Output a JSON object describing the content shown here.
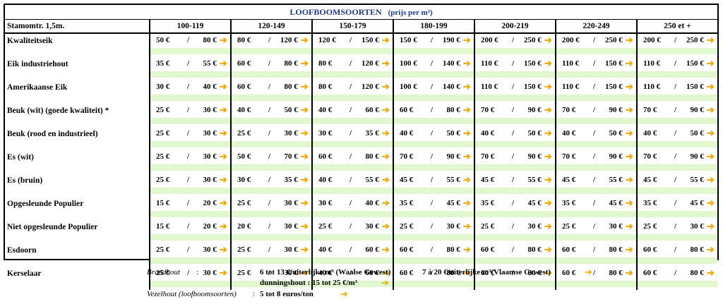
{
  "title": "LOOFBOOMSOORTEN",
  "subtitle": "(prijs per m³)",
  "header_label": "Stamomtr. 1,5m.",
  "columns": [
    "100-119",
    "120-149",
    "150-179",
    "180-199",
    "200-219",
    "220-249",
    "250 et +"
  ],
  "arrow": "➔",
  "slash": "/",
  "rows": [
    {
      "name": "Kwaliteitseik",
      "prices": [
        [
          "50 €",
          "80 €"
        ],
        [
          "80 €",
          "120 €"
        ],
        [
          "120 €",
          "150 €"
        ],
        [
          "150 €",
          "190 €"
        ],
        [
          "200 €",
          "250 €"
        ],
        [
          "200 €",
          "250 €"
        ],
        [
          "200 €",
          "250 €"
        ]
      ]
    },
    {
      "name": "Eik industriehout",
      "prices": [
        [
          "35 €",
          "55 €"
        ],
        [
          "60 €",
          "80 €"
        ],
        [
          "80 €",
          "120 €"
        ],
        [
          "100 €",
          "140 €"
        ],
        [
          "110 €",
          "150 €"
        ],
        [
          "110 €",
          "150 €"
        ],
        [
          "110 €",
          "150 €"
        ]
      ]
    },
    {
      "name": "Amerikaanse Eik",
      "prices": [
        [
          "30 €",
          "40 €"
        ],
        [
          "60 €",
          "80 €"
        ],
        [
          "80 €",
          "120 €"
        ],
        [
          "100 €",
          "140 €"
        ],
        [
          "110 €",
          "150 €"
        ],
        [
          "110 €",
          "150 €"
        ],
        [
          "110 €",
          "150 €"
        ]
      ]
    },
    {
      "name": "Beuk (wit) (goede kwaliteit) *",
      "prices": [
        [
          "25 €",
          "30 €"
        ],
        [
          "40 €",
          "50 €"
        ],
        [
          "40 €",
          "60 €"
        ],
        [
          "60 €",
          "80 €"
        ],
        [
          "70 €",
          "90 €"
        ],
        [
          "70 €",
          "90 €"
        ],
        [
          "70 €",
          "90 €"
        ]
      ]
    },
    {
      "name": "Beuk (rood en industrieel)",
      "prices": [
        [
          "25 €",
          "30 €"
        ],
        [
          "25 €",
          "30 €"
        ],
        [
          "30 €",
          "35 €"
        ],
        [
          "40 €",
          "50 €"
        ],
        [
          "40 €",
          "50 €"
        ],
        [
          "40 €",
          "50 €"
        ],
        [
          "40 €",
          "50 €"
        ]
      ]
    },
    {
      "name": "Es (wit)",
      "prices": [
        [
          "25 €",
          "30 €"
        ],
        [
          "50 €",
          "70 €"
        ],
        [
          "60 €",
          "80 €"
        ],
        [
          "70 €",
          "90 €"
        ],
        [
          "70 €",
          "90 €"
        ],
        [
          "70 €",
          "90 €"
        ],
        [
          "70 €",
          "90 €"
        ]
      ]
    },
    {
      "name": "Es (bruin)",
      "prices": [
        [
          "25 €",
          "30 €"
        ],
        [
          "30 €",
          "35 €"
        ],
        [
          "40 €",
          "55 €"
        ],
        [
          "45 €",
          "55 €"
        ],
        [
          "45 €",
          "55 €"
        ],
        [
          "45 €",
          "55 €"
        ],
        [
          "45 €",
          "55 €"
        ]
      ]
    },
    {
      "name": "Opgesleunde Populier",
      "prices": [
        [
          "15 €",
          "20 €"
        ],
        [
          "25 €",
          "30 €"
        ],
        [
          "30 €",
          "40 €"
        ],
        [
          "35 €",
          "45 €"
        ],
        [
          "35 €",
          "45 €"
        ],
        [
          "35 €",
          "45 €"
        ],
        [
          "35 €",
          "45 €"
        ]
      ]
    },
    {
      "name": "Niet opgesleunde Populier",
      "prices": [
        [
          "15 €",
          "20 €"
        ],
        [
          "20 €",
          "30 €"
        ],
        [
          "25 €",
          "30 €"
        ],
        [
          "25 €",
          "30 €"
        ],
        [
          "25 €",
          "30 €"
        ],
        [
          "25 €",
          "30 €"
        ],
        [
          "25 €",
          "30 €"
        ]
      ]
    },
    {
      "name": "Esdoorn",
      "prices": [
        [
          "25 €",
          "30 €"
        ],
        [
          "25 €",
          "30 €"
        ],
        [
          "40 €",
          "60 €"
        ],
        [
          "60 €",
          "80 €"
        ],
        [
          "60 €",
          "80 €"
        ],
        [
          "60 €",
          "80 €"
        ],
        [
          "60 €",
          "80 €"
        ]
      ]
    },
    {
      "name": "Kerselaar",
      "prices": [
        [
          "25 €",
          "30 €"
        ],
        [
          "25 €",
          "30 €"
        ],
        [
          "40 €",
          "60 €"
        ],
        [
          "60 €",
          "80 €"
        ],
        [
          "60 €",
          "80 €"
        ],
        [
          "60 €",
          "80 €"
        ],
        [
          "60 €",
          "80 €"
        ]
      ]
    }
  ],
  "footer": {
    "brandhout_label": "Brandhout",
    "brandhout_colon": ":",
    "brandhout_walloon": "6 tot 13 €/uiterlijke m³ (Waalse Gewest)",
    "brandhout_flemish": "7 à 20 €/uiterlijke m³(Vlaamse Gewest)",
    "dunningshout": "dunningshout : 15 tot 25 €/m³",
    "vezelhout_label": "Vezelhout  (loofboomsoorten)",
    "vezelhout_colon": ":",
    "vezelhout_value": "5 tot 8 euros/ton"
  },
  "colors": {
    "title": "#1f3a8a",
    "band": "#e1f8cf",
    "arrow": "#f2a900"
  }
}
